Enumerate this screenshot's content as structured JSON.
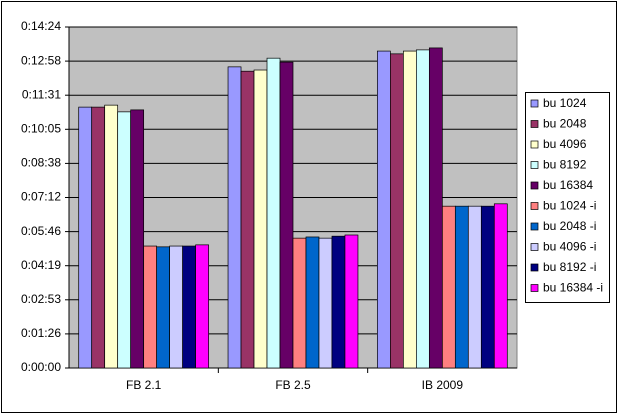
{
  "chart_data": {
    "type": "bar",
    "categories": [
      "FB 2.1",
      "FB 2.5",
      "IB 2009"
    ],
    "series": [
      {
        "name": "bu 1024",
        "color": "#9999ff",
        "values": [
          661,
          763,
          803
        ]
      },
      {
        "name": "bu 2048",
        "color": "#993366",
        "values": [
          661,
          752,
          796
        ]
      },
      {
        "name": "bu 4096",
        "color": "#ffffcc",
        "values": [
          666,
          755,
          803
        ]
      },
      {
        "name": "bu 8192",
        "color": "#ccffff",
        "values": [
          649,
          785,
          806
        ]
      },
      {
        "name": "bu 16384",
        "color": "#660066",
        "values": [
          654,
          775,
          811
        ]
      },
      {
        "name": "bu 1024 -i",
        "color": "#ff8080",
        "values": [
          309,
          329,
          410
        ]
      },
      {
        "name": "bu 2048 -i",
        "color": "#0066cc",
        "values": [
          307,
          332,
          410
        ]
      },
      {
        "name": "bu 4096 -i",
        "color": "#ccccff",
        "values": [
          309,
          329,
          410
        ]
      },
      {
        "name": "bu 8192 -i",
        "color": "#000080",
        "values": [
          309,
          334,
          410
        ]
      },
      {
        "name": "bu 16384 -i",
        "color": "#ff00ff",
        "values": [
          312,
          337,
          416
        ]
      }
    ],
    "ylim": [
      0,
      864
    ],
    "yticks": [
      {
        "value": 0,
        "label": "0:00:00"
      },
      {
        "value": 86.4,
        "label": "0:01:26"
      },
      {
        "value": 172.8,
        "label": "0:02:53"
      },
      {
        "value": 259.2,
        "label": "0:04:19"
      },
      {
        "value": 345.6,
        "label": "0:05:46"
      },
      {
        "value": 432,
        "label": "0:07:12"
      },
      {
        "value": 518.4,
        "label": "0:08:38"
      },
      {
        "value": 604.8,
        "label": "0:10:05"
      },
      {
        "value": 691.2,
        "label": "0:11:31"
      },
      {
        "value": 777.6,
        "label": "0:12:58"
      },
      {
        "value": 864,
        "label": "0:14:24"
      }
    ],
    "grid": true,
    "legend": "right"
  }
}
